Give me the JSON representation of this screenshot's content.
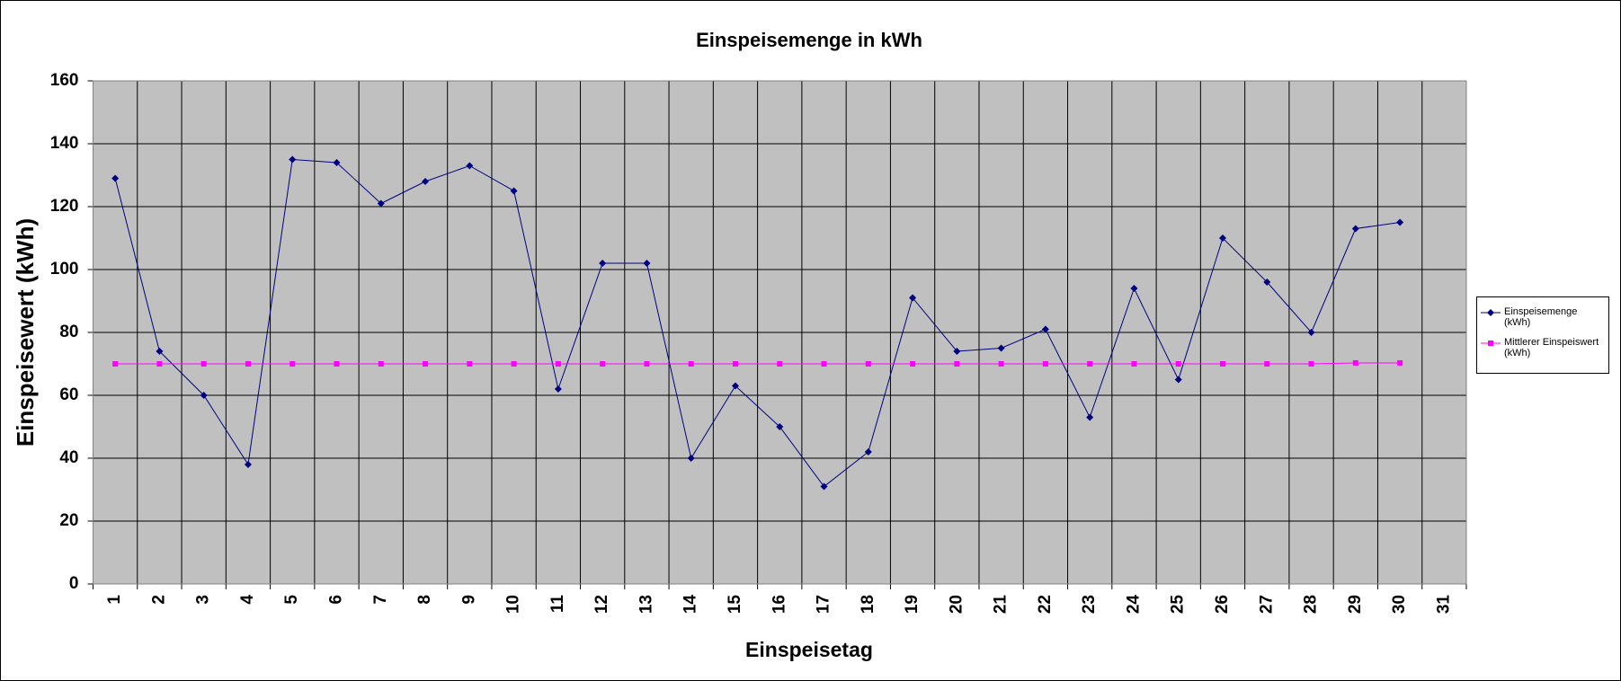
{
  "chart_data": {
    "type": "line",
    "title": "Einspeisemenge in kWh",
    "x_label": "Einspeisetag",
    "y_label": "Einspeisewert  (kWh)",
    "categories": [
      "1",
      "2",
      "3",
      "4",
      "5",
      "6",
      "7",
      "8",
      "9",
      "10",
      "11",
      "12",
      "13",
      "14",
      "15",
      "16",
      "17",
      "18",
      "19",
      "20",
      "21",
      "22",
      "23",
      "24",
      "25",
      "26",
      "27",
      "28",
      "29",
      "30",
      "31"
    ],
    "series": [
      {
        "name": "Einspeisemenge (kWh)",
        "color": "#000080",
        "marker": "diamond",
        "values": [
          129,
          74,
          60,
          38,
          135,
          134,
          121,
          128,
          133,
          125,
          62,
          102,
          102,
          40,
          63,
          50,
          31,
          42,
          91,
          74,
          75,
          81,
          53,
          94,
          65,
          110,
          96,
          80,
          113,
          115,
          null
        ]
      },
      {
        "name": "Mittlerer Einspeiswert (kWh)",
        "color": "#ff00ff",
        "marker": "square",
        "values": [
          70,
          70,
          70,
          70,
          70,
          70,
          70,
          70,
          70,
          70,
          70,
          70,
          70,
          70,
          70,
          70,
          70,
          70,
          70,
          70,
          70,
          70,
          70,
          70,
          70,
          70,
          70,
          70,
          70.3,
          70.3,
          null
        ]
      }
    ],
    "ylim": [
      0,
      160
    ],
    "yticks": [
      0,
      20,
      40,
      60,
      80,
      100,
      120,
      140,
      160
    ],
    "grid": true,
    "background": "#c0c0c0",
    "legend": "right"
  }
}
